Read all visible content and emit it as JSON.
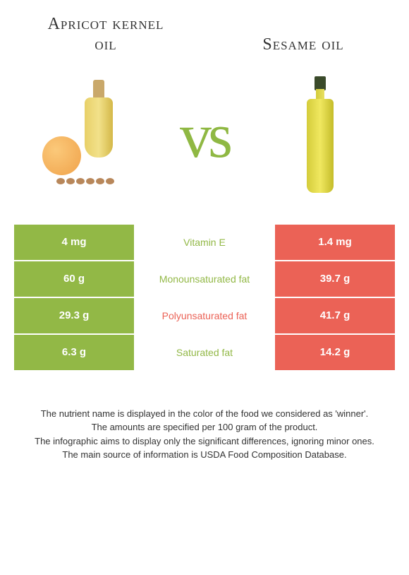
{
  "titles": {
    "left": "Apricot kernel oil",
    "right": "Sesame oil"
  },
  "vs_text": "vs",
  "colors": {
    "left_bg": "#92b846",
    "right_bg": "#eb6256",
    "left_text": "#92b846",
    "right_text": "#eb6256",
    "vs_color": "#8fb843"
  },
  "rows": [
    {
      "left": "4 mg",
      "label": "Vitamin E",
      "right": "1.4 mg",
      "winner": "left"
    },
    {
      "left": "60 g",
      "label": "Monounsaturated fat",
      "right": "39.7 g",
      "winner": "left"
    },
    {
      "left": "29.3 g",
      "label": "Polyunsaturated fat",
      "right": "41.7 g",
      "winner": "right"
    },
    {
      "left": "6.3 g",
      "label": "Saturated fat",
      "right": "14.2 g",
      "winner": "left"
    }
  ],
  "footer": [
    "The nutrient name is displayed in the color of the food we considered as 'winner'.",
    "The amounts are specified per 100 gram of the product.",
    "The infographic aims to display only the significant differences, ignoring minor ones.",
    "The main source of information is USDA Food Composition Database."
  ]
}
